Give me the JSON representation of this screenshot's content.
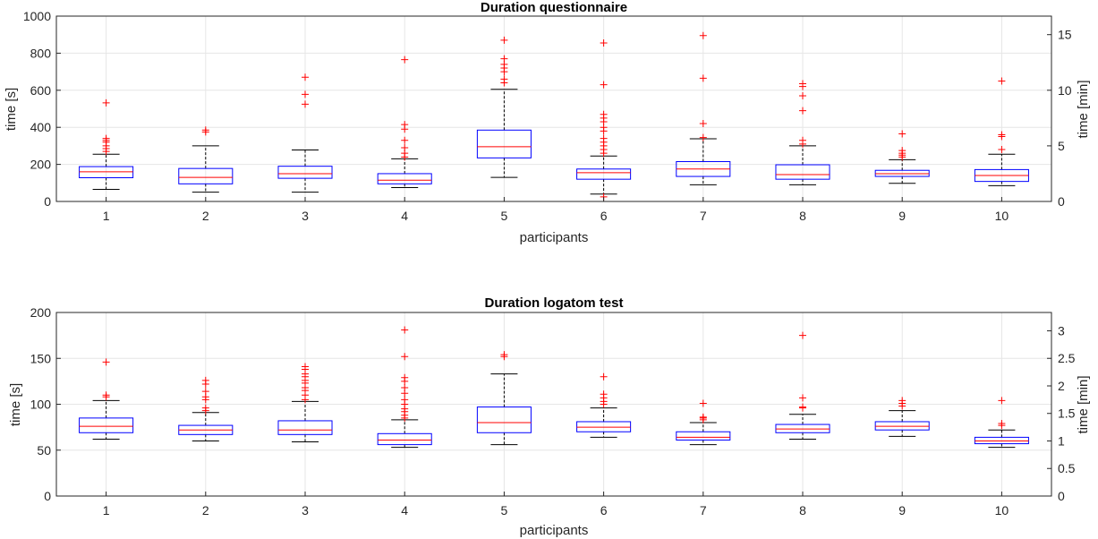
{
  "chart_data": [
    {
      "type": "boxplot",
      "title": "Duration questionnaire",
      "xlabel": "participants",
      "ylabel": "time [s]",
      "ylabel_right": "time [min]",
      "ylim": [
        0,
        1000
      ],
      "yticks": [
        0,
        200,
        400,
        600,
        800,
        1000
      ],
      "ylim_right": [
        0,
        16.667
      ],
      "yticks_right": [
        0,
        5,
        10,
        15
      ],
      "grid": true,
      "categories": [
        "1",
        "2",
        "3",
        "4",
        "5",
        "6",
        "7",
        "8",
        "9",
        "10"
      ],
      "boxes": [
        {
          "whisker_low": 65,
          "q1": 128,
          "median": 160,
          "q3": 188,
          "whisker_high": 255,
          "outliers": [
            270,
            285,
            300,
            320,
            330,
            340,
            532
          ]
        },
        {
          "whisker_low": 50,
          "q1": 95,
          "median": 130,
          "q3": 178,
          "whisker_high": 300,
          "outliers": [
            375,
            385
          ]
        },
        {
          "whisker_low": 50,
          "q1": 125,
          "median": 150,
          "q3": 190,
          "whisker_high": 278,
          "outliers": [
            525,
            578,
            670
          ]
        },
        {
          "whisker_low": 75,
          "q1": 95,
          "median": 115,
          "q3": 150,
          "whisker_high": 230,
          "outliers": [
            240,
            260,
            290,
            330,
            390,
            415,
            765
          ]
        },
        {
          "whisker_low": 130,
          "q1": 235,
          "median": 295,
          "q3": 385,
          "whisker_high": 605,
          "outliers": [
            640,
            660,
            700,
            720,
            740,
            770,
            870
          ]
        },
        {
          "whisker_low": 40,
          "q1": 120,
          "median": 155,
          "q3": 175,
          "whisker_high": 245,
          "outliers": [
            25,
            260,
            280,
            300,
            320,
            340,
            380,
            400,
            430,
            450,
            470,
            630,
            855
          ]
        },
        {
          "whisker_low": 90,
          "q1": 135,
          "median": 175,
          "q3": 215,
          "whisker_high": 338,
          "outliers": [
            345,
            420,
            665,
            895
          ]
        },
        {
          "whisker_low": 90,
          "q1": 120,
          "median": 145,
          "q3": 198,
          "whisker_high": 300,
          "outliers": [
            310,
            330,
            490,
            570,
            620,
            635
          ]
        },
        {
          "whisker_low": 98,
          "q1": 135,
          "median": 150,
          "q3": 168,
          "whisker_high": 225,
          "outliers": [
            240,
            250,
            260,
            275,
            365
          ]
        },
        {
          "whisker_low": 85,
          "q1": 108,
          "median": 140,
          "q3": 172,
          "whisker_high": 255,
          "outliers": [
            280,
            350,
            360,
            650
          ]
        }
      ]
    },
    {
      "type": "boxplot",
      "title": "Duration logatom test",
      "xlabel": "participants",
      "ylabel": "time [s]",
      "ylabel_right": "time [min]",
      "ylim": [
        0,
        200
      ],
      "yticks": [
        0,
        50,
        100,
        150,
        200
      ],
      "ylim_right": [
        0,
        3.333
      ],
      "yticks_right": [
        0,
        0.5,
        1,
        1.5,
        2,
        2.5,
        3
      ],
      "grid": true,
      "categories": [
        "1",
        "2",
        "3",
        "4",
        "5",
        "6",
        "7",
        "8",
        "9",
        "10"
      ],
      "boxes": [
        {
          "whisker_low": 62,
          "q1": 69,
          "median": 76,
          "q3": 85,
          "whisker_high": 104,
          "outliers": [
            108,
            110,
            146
          ]
        },
        {
          "whisker_low": 60,
          "q1": 67,
          "median": 72,
          "q3": 77,
          "whisker_high": 91,
          "outliers": [
            93,
            96,
            105,
            108,
            114,
            122,
            126
          ]
        },
        {
          "whisker_low": 59,
          "q1": 67,
          "median": 72,
          "q3": 82,
          "whisker_high": 103,
          "outliers": [
            105,
            110,
            115,
            118,
            123,
            126,
            130,
            133,
            138,
            141
          ]
        },
        {
          "whisker_low": 53,
          "q1": 56,
          "median": 61,
          "q3": 68,
          "whisker_high": 83,
          "outliers": [
            85,
            88,
            92,
            95,
            100,
            105,
            112,
            118,
            125,
            129,
            152,
            181
          ]
        },
        {
          "whisker_low": 56,
          "q1": 69,
          "median": 80,
          "q3": 97,
          "whisker_high": 133,
          "outliers": [
            152,
            154
          ]
        },
        {
          "whisker_low": 64,
          "q1": 70,
          "median": 75,
          "q3": 81,
          "whisker_high": 96,
          "outliers": [
            100,
            103,
            107,
            111,
            130
          ]
        },
        {
          "whisker_low": 56,
          "q1": 61,
          "median": 64,
          "q3": 70,
          "whisker_high": 80,
          "outliers": [
            83,
            85,
            86,
            101
          ]
        },
        {
          "whisker_low": 62,
          "q1": 69,
          "median": 73,
          "q3": 78,
          "whisker_high": 89,
          "outliers": [
            96,
            97,
            107,
            175
          ]
        },
        {
          "whisker_low": 65,
          "q1": 72,
          "median": 76,
          "q3": 81,
          "whisker_high": 93,
          "outliers": [
            98,
            101,
            104
          ]
        },
        {
          "whisker_low": 53,
          "q1": 57,
          "median": 60,
          "q3": 64,
          "whisker_high": 72,
          "outliers": [
            77,
            79,
            104
          ]
        }
      ]
    }
  ]
}
